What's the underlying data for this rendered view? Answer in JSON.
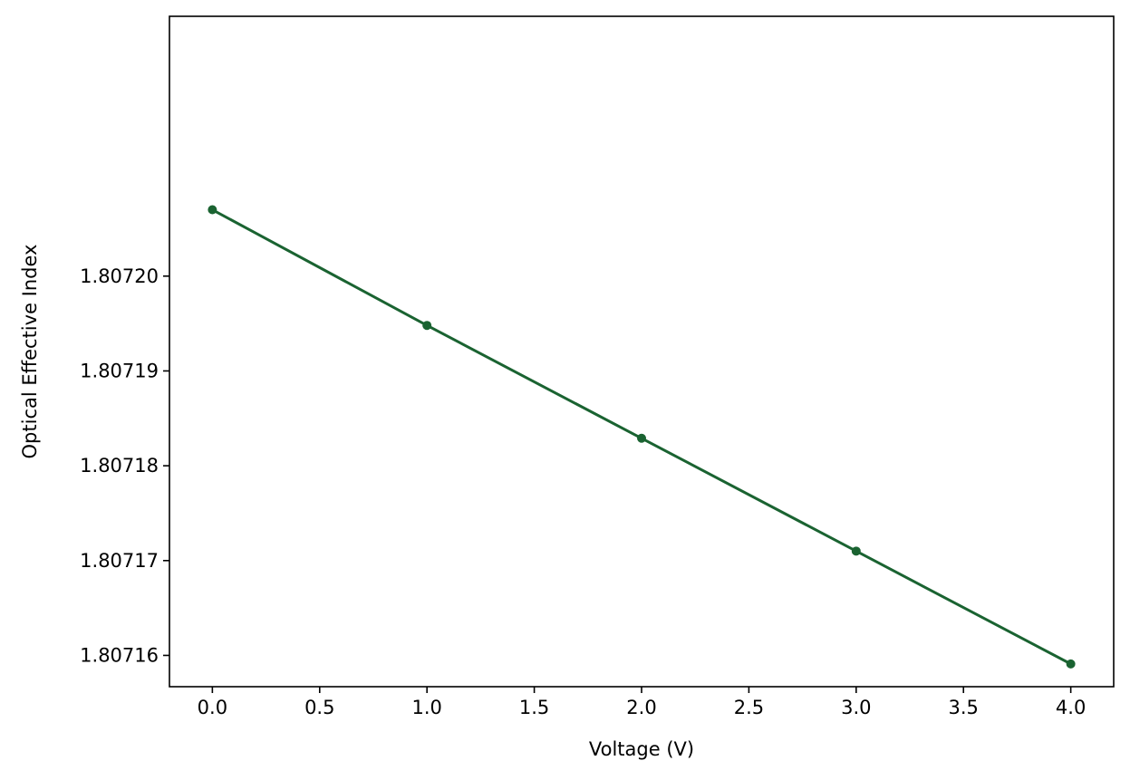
{
  "chart_data": {
    "type": "line",
    "title": "",
    "xlabel": "Voltage (V)",
    "ylabel": "Optical Effective Index",
    "x": [
      0,
      1,
      2,
      3,
      4
    ],
    "series": [
      {
        "values": [
          1.807207,
          1.8071948,
          1.8071829,
          1.807171,
          1.8071591
        ],
        "color": "#1a6331",
        "marker": "circle"
      }
    ],
    "xlim": [
      -0.2,
      4.2
    ],
    "ylim": [
      1.8071567,
      1.8072274
    ],
    "xticks": [
      0.0,
      0.5,
      1.0,
      1.5,
      2.0,
      2.5,
      3.0,
      3.5,
      4.0
    ],
    "xtick_labels": [
      "0.0",
      "0.5",
      "1.0",
      "1.5",
      "2.0",
      "2.5",
      "3.0",
      "3.5",
      "4.0"
    ],
    "yticks": [
      1.80716,
      1.80717,
      1.80718,
      1.80719,
      1.8072
    ],
    "ytick_labels": [
      "1.80716",
      "1.80717",
      "1.80718",
      "1.80719",
      "1.80720"
    ],
    "grid": false,
    "legend": "none"
  }
}
